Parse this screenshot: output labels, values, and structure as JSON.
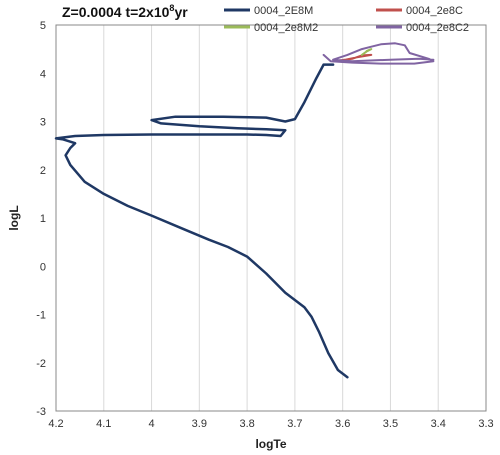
{
  "chart_data": {
    "type": "line",
    "title_main": "Z=0.0004 t=2x10",
    "title_sup": "8",
    "title_end": "yr",
    "xlabel": "logTe",
    "ylabel": "logL",
    "xlim": [
      4.2,
      3.3
    ],
    "ylim": [
      -3,
      5
    ],
    "x_reversed": true,
    "grid": "vertical",
    "legend_position": "top-right",
    "x_ticks": [
      "4.2",
      "4.1",
      "4",
      "3.9",
      "3.8",
      "3.7",
      "3.6",
      "3.5",
      "3.4",
      "3.3"
    ],
    "x_tick_values": [
      4.2,
      4.1,
      4.0,
      3.9,
      3.8,
      3.7,
      3.6,
      3.5,
      3.4,
      3.3
    ],
    "y_ticks": [
      "-3",
      "-2",
      "-1",
      "0",
      "1",
      "2",
      "3",
      "4",
      "5"
    ],
    "y_tick_values": [
      -3,
      -2,
      -1,
      0,
      1,
      2,
      3,
      4,
      5
    ],
    "series": [
      {
        "name": "0004_2E8M",
        "color": "#1f3864",
        "points": [
          [
            3.59,
            -2.3
          ],
          [
            3.61,
            -2.15
          ],
          [
            3.63,
            -1.8
          ],
          [
            3.65,
            -1.35
          ],
          [
            3.665,
            -1.05
          ],
          [
            3.68,
            -0.85
          ],
          [
            3.72,
            -0.55
          ],
          [
            3.76,
            -0.15
          ],
          [
            3.8,
            0.2
          ],
          [
            3.84,
            0.4
          ],
          [
            3.88,
            0.55
          ],
          [
            3.94,
            0.8
          ],
          [
            4.0,
            1.05
          ],
          [
            4.05,
            1.25
          ],
          [
            4.1,
            1.5
          ],
          [
            4.14,
            1.75
          ],
          [
            4.17,
            2.1
          ],
          [
            4.18,
            2.3
          ],
          [
            4.17,
            2.45
          ],
          [
            4.16,
            2.55
          ],
          [
            4.185,
            2.63
          ],
          [
            4.2,
            2.65
          ],
          [
            4.16,
            2.7
          ],
          [
            4.1,
            2.72
          ],
          [
            4.0,
            2.73
          ],
          [
            3.9,
            2.73
          ],
          [
            3.8,
            2.73
          ],
          [
            3.76,
            2.72
          ],
          [
            3.73,
            2.7
          ],
          [
            3.72,
            2.82
          ],
          [
            3.76,
            2.84
          ],
          [
            3.82,
            2.86
          ],
          [
            3.9,
            2.9
          ],
          [
            3.98,
            2.96
          ],
          [
            4.0,
            3.03
          ],
          [
            3.95,
            3.1
          ],
          [
            3.85,
            3.1
          ],
          [
            3.76,
            3.08
          ],
          [
            3.72,
            3.0
          ],
          [
            3.7,
            3.05
          ],
          [
            3.68,
            3.4
          ],
          [
            3.655,
            3.9
          ],
          [
            3.64,
            4.18
          ],
          [
            3.62,
            4.18
          ]
        ]
      },
      {
        "name": "0004_2e8C",
        "color": "#c0504d",
        "points": [
          [
            3.61,
            4.25
          ],
          [
            3.57,
            4.33
          ],
          [
            3.54,
            4.38
          ],
          [
            3.56,
            4.37
          ],
          [
            3.58,
            4.3
          ],
          [
            3.62,
            4.25
          ]
        ]
      },
      {
        "name": "0004_2e8M2",
        "color": "#9bbb59",
        "points": [
          [
            3.56,
            4.38
          ],
          [
            3.55,
            4.45
          ],
          [
            3.54,
            4.5
          ],
          [
            3.55,
            4.46
          ]
        ]
      },
      {
        "name": "0004_2e8C2",
        "color": "#8064a2",
        "points": [
          [
            3.64,
            4.38
          ],
          [
            3.625,
            4.25
          ],
          [
            3.58,
            4.22
          ],
          [
            3.52,
            4.2
          ],
          [
            3.45,
            4.2
          ],
          [
            3.41,
            4.25
          ],
          [
            3.42,
            4.3
          ],
          [
            3.46,
            4.42
          ],
          [
            3.47,
            4.58
          ],
          [
            3.49,
            4.62
          ],
          [
            3.52,
            4.6
          ],
          [
            3.54,
            4.55
          ],
          [
            3.56,
            4.5
          ],
          [
            3.59,
            4.38
          ],
          [
            3.62,
            4.28
          ],
          [
            3.58,
            4.25
          ],
          [
            3.5,
            4.28
          ],
          [
            3.44,
            4.3
          ],
          [
            3.41,
            4.28
          ]
        ]
      }
    ]
  }
}
